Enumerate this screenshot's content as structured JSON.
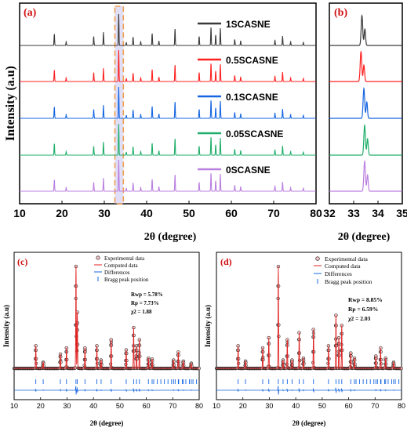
{
  "figure": {
    "panels": {
      "a": {
        "label": "(a)"
      },
      "b": {
        "label": "(b)"
      },
      "c": {
        "label": "(c)"
      },
      "d": {
        "label": "(d)"
      }
    }
  },
  "chart_data": [
    {
      "panel": "(a)",
      "type": "line",
      "xlabel": "2θ (degree)",
      "ylabel": "Intensity (a.u)",
      "xlim": [
        10,
        80
      ],
      "xticks": [
        "10",
        "20",
        "30",
        "40",
        "50",
        "60",
        "70",
        "80"
      ],
      "highlight_range": [
        32.5,
        34.5
      ],
      "legend_position": "right, per trace",
      "series": [
        {
          "name": "1SCASNE",
          "color": "#3a3a3a"
        },
        {
          "name": "0.5SCASNE",
          "color": "#ff2020"
        },
        {
          "name": "0.1SCASNE",
          "color": "#1565e0"
        },
        {
          "name": "0.05SCASNE",
          "color": "#1fae6a"
        },
        {
          "name": "0SCASNE",
          "color": "#bb7fe0"
        }
      ],
      "peaks": [
        {
          "x": 18.2,
          "h": 0.38
        },
        {
          "x": 21.0,
          "h": 0.12
        },
        {
          "x": 27.5,
          "h": 0.3
        },
        {
          "x": 29.8,
          "h": 0.42
        },
        {
          "x": 33.4,
          "h": 1.0
        },
        {
          "x": 35.2,
          "h": 0.1
        },
        {
          "x": 36.8,
          "h": 0.28
        },
        {
          "x": 38.6,
          "h": 0.12
        },
        {
          "x": 41.3,
          "h": 0.4
        },
        {
          "x": 42.9,
          "h": 0.15
        },
        {
          "x": 46.7,
          "h": 0.55
        },
        {
          "x": 52.4,
          "h": 0.3
        },
        {
          "x": 55.2,
          "h": 0.6
        },
        {
          "x": 56.3,
          "h": 0.35
        },
        {
          "x": 57.4,
          "h": 0.55
        },
        {
          "x": 60.8,
          "h": 0.2
        },
        {
          "x": 62.2,
          "h": 0.15
        },
        {
          "x": 70.3,
          "h": 0.18
        },
        {
          "x": 72.1,
          "h": 0.3
        },
        {
          "x": 74.0,
          "h": 0.12
        },
        {
          "x": 77.0,
          "h": 0.1
        }
      ]
    },
    {
      "panel": "(b)",
      "type": "line",
      "xlabel": "2θ (degree)",
      "xlim": [
        32,
        35
      ],
      "xticks": [
        "32",
        "33",
        "34",
        "35"
      ],
      "series": [
        {
          "name": "1SCASNE",
          "color": "#3a3a3a",
          "peak_x": 33.34
        },
        {
          "name": "0.5SCASNE",
          "color": "#ff2020",
          "peak_x": 33.3
        },
        {
          "name": "0.1SCASNE",
          "color": "#1565e0",
          "peak_x": 33.42
        },
        {
          "name": "0.05SCASNE",
          "color": "#1fae6a",
          "peak_x": 33.45
        },
        {
          "name": "0SCASNE",
          "color": "#bb7fe0",
          "peak_x": 33.45
        }
      ]
    },
    {
      "panel": "(c)",
      "type": "scatter",
      "xlabel": "2θ (degree)",
      "ylabel": "Intensity (a.u)",
      "xlim": [
        10,
        80
      ],
      "xticks": [
        "10",
        "20",
        "30",
        "40",
        "50",
        "60",
        "70",
        "80"
      ],
      "legend": [
        "Experimental data",
        "Computed data",
        "Differences",
        "Bragg peak position"
      ],
      "stats": [
        "Rwp = 5.78%",
        "Rp = 7.73%",
        "χ2 = 1.88"
      ],
      "peaks": [
        {
          "x": 18.2,
          "h": 0.22
        },
        {
          "x": 21.0,
          "h": 0.06
        },
        {
          "x": 27.5,
          "h": 0.14
        },
        {
          "x": 29.8,
          "h": 0.2
        },
        {
          "x": 33.4,
          "h": 1.0
        },
        {
          "x": 33.9,
          "h": 0.55
        },
        {
          "x": 36.8,
          "h": 0.2
        },
        {
          "x": 41.3,
          "h": 0.22
        },
        {
          "x": 42.9,
          "h": 0.08
        },
        {
          "x": 46.7,
          "h": 0.28
        },
        {
          "x": 52.4,
          "h": 0.18
        },
        {
          "x": 55.2,
          "h": 0.4
        },
        {
          "x": 56.3,
          "h": 0.22
        },
        {
          "x": 57.4,
          "h": 0.28
        },
        {
          "x": 60.8,
          "h": 0.1
        },
        {
          "x": 62.2,
          "h": 0.09
        },
        {
          "x": 70.3,
          "h": 0.08
        },
        {
          "x": 72.1,
          "h": 0.16
        },
        {
          "x": 74.0,
          "h": 0.07
        },
        {
          "x": 77.0,
          "h": 0.05
        }
      ]
    },
    {
      "panel": "(d)",
      "type": "scatter",
      "xlabel": "2θ (degree)",
      "ylabel": "Intensity (a.u)",
      "xlim": [
        10,
        80
      ],
      "xticks": [
        "10",
        "20",
        "30",
        "40",
        "50",
        "60",
        "70",
        "80"
      ],
      "legend": [
        "Experimental data",
        "Computed data",
        "Differences",
        "Bragg peak position"
      ],
      "stats": [
        "Rwp = 8.85%",
        "Rp = 6.59%",
        "χ2 = 2.03"
      ],
      "peaks": [
        {
          "x": 18.2,
          "h": 0.22
        },
        {
          "x": 21.0,
          "h": 0.07
        },
        {
          "x": 27.5,
          "h": 0.2
        },
        {
          "x": 29.8,
          "h": 0.3
        },
        {
          "x": 33.4,
          "h": 1.0
        },
        {
          "x": 35.2,
          "h": 0.08
        },
        {
          "x": 36.8,
          "h": 0.28
        },
        {
          "x": 38.6,
          "h": 0.08
        },
        {
          "x": 41.3,
          "h": 0.35
        },
        {
          "x": 42.9,
          "h": 0.1
        },
        {
          "x": 46.7,
          "h": 0.38
        },
        {
          "x": 52.4,
          "h": 0.22
        },
        {
          "x": 55.2,
          "h": 0.52
        },
        {
          "x": 56.3,
          "h": 0.3
        },
        {
          "x": 57.4,
          "h": 0.42
        },
        {
          "x": 60.8,
          "h": 0.15
        },
        {
          "x": 62.2,
          "h": 0.1
        },
        {
          "x": 70.3,
          "h": 0.12
        },
        {
          "x": 72.1,
          "h": 0.2
        },
        {
          "x": 74.0,
          "h": 0.1
        },
        {
          "x": 77.0,
          "h": 0.06
        }
      ]
    }
  ]
}
